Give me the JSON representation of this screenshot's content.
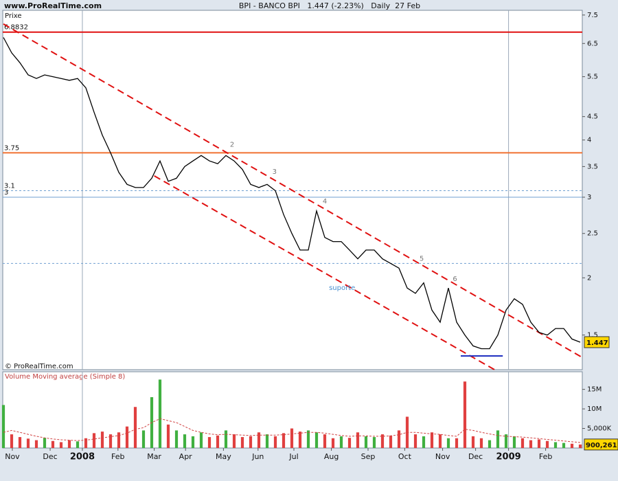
{
  "chart_data": [
    {
      "type": "line",
      "title": "BPI - BANCO BPI   1.447 (-2.23%)   Daily  27 Feb",
      "site": "www.ProRealTime.com",
      "credit": "© ProRealTime.com",
      "y_label": "Prixe",
      "log_scale": true,
      "color": "#000000",
      "xlim": [
        0,
        70
      ],
      "xticks": [
        {
          "value": 1.08,
          "label": "Nov"
        },
        {
          "value": 5.67,
          "label": "Dec"
        },
        {
          "value": 9.58,
          "label": "2008"
        },
        {
          "value": 13.9,
          "label": "Feb"
        },
        {
          "value": 18.3,
          "label": "Mar"
        },
        {
          "value": 22.1,
          "label": "Apr"
        },
        {
          "value": 26.7,
          "label": "May"
        },
        {
          "value": 30.9,
          "label": "Jun"
        },
        {
          "value": 35.25,
          "label": "Jul"
        },
        {
          "value": 39.8,
          "label": "Aug"
        },
        {
          "value": 44.25,
          "label": "Sep"
        },
        {
          "value": 48.7,
          "label": "Oct"
        },
        {
          "value": 53.3,
          "label": "Nov"
        },
        {
          "value": 57.3,
          "label": "Dec"
        },
        {
          "value": 61.3,
          "label": "2009"
        },
        {
          "value": 65.8,
          "label": "Feb"
        }
      ],
      "ylim": [
        1.26,
        7.68
      ],
      "yticks": [
        1.5,
        2,
        2.5,
        3,
        3.5,
        4,
        4.5,
        5.5,
        6.5,
        7.5
      ],
      "values": [
        6.7,
        6.2,
        5.9,
        5.55,
        5.45,
        5.55,
        5.5,
        5.45,
        5.4,
        5.45,
        5.2,
        4.6,
        4.1,
        3.75,
        3.4,
        3.2,
        3.15,
        3.15,
        3.3,
        3.6,
        3.25,
        3.3,
        3.5,
        3.6,
        3.7,
        3.6,
        3.55,
        3.7,
        3.6,
        3.45,
        3.2,
        3.15,
        3.2,
        3.1,
        2.75,
        2.5,
        2.3,
        2.3,
        2.8,
        2.45,
        2.4,
        2.4,
        2.3,
        2.2,
        2.3,
        2.3,
        2.2,
        2.15,
        2.1,
        1.9,
        1.85,
        1.95,
        1.7,
        1.6,
        1.9,
        1.6,
        1.5,
        1.42,
        1.4,
        1.4,
        1.5,
        1.7,
        1.8,
        1.75,
        1.6,
        1.52,
        1.5,
        1.55,
        1.55,
        1.47,
        1.447
      ],
      "levels": [
        {
          "value": 6.8832,
          "color": "#e01010",
          "style": "solid"
        },
        {
          "value": 3.75,
          "color": "#f07030",
          "style": "solid"
        },
        {
          "value": 3.1,
          "color": "#6f9fd0",
          "style": "dashed"
        },
        {
          "value": 3,
          "color": "#6f9fd0",
          "style": "solid"
        }
      ],
      "guides": [
        {
          "value": 2.15,
          "color": "#6f9fd0",
          "style": "dashed"
        }
      ],
      "trendlines": [
        {
          "from": [
            0,
            7.17
          ],
          "to": [
            70.25,
            1.34
          ],
          "color": "#e01010",
          "style": "dashed"
        },
        {
          "from": [
            18.3,
            3.34
          ],
          "to": [
            59.6,
            1.26
          ],
          "color": "#e01010",
          "style": "dashed"
        },
        {
          "from": [
            55.5,
            1.35
          ],
          "to": [
            60.6,
            1.35
          ],
          "color": "#2030c0",
          "style": "solid"
        }
      ],
      "annotations": [
        {
          "text": "2",
          "x": 27.75,
          "y": 3.91,
          "color": "#777777"
        },
        {
          "text": "3",
          "x": 32.9,
          "y": 3.41,
          "color": "#777777"
        },
        {
          "text": "4",
          "x": 39,
          "y": 2.94,
          "color": "#777777"
        },
        {
          "text": "5",
          "x": 50.75,
          "y": 2.2,
          "color": "#777777"
        },
        {
          "text": "6",
          "x": 54.8,
          "y": 1.99,
          "color": "#777777"
        },
        {
          "text": "suporte",
          "x": 41.1,
          "y": 1.9,
          "color": "#4a90d0"
        }
      ]
    },
    {
      "type": "bar",
      "title": "Volume Moving average (Simple 8)",
      "up_color": "#40b040",
      "down_color": "#e04040",
      "xlim": [
        0,
        70
      ],
      "ylim": [
        0,
        19500000
      ],
      "yticks": [
        {
          "value": 5000000,
          "label": "5,000K"
        },
        {
          "value": 10000000,
          "label": "10M"
        },
        {
          "value": 15000000,
          "label": "15M"
        }
      ],
      "values": [
        11000000,
        3500000,
        2800000,
        2400000,
        2000000,
        2600000,
        1800000,
        1500000,
        2000000,
        1700000,
        2500000,
        3800000,
        4200000,
        3500000,
        4000000,
        5500000,
        10500000,
        4500000,
        13000000,
        17500000,
        6000000,
        4500000,
        3500000,
        3000000,
        4000000,
        2800000,
        3200000,
        4500000,
        3500000,
        2800000,
        3000000,
        4000000,
        3500000,
        3000000,
        3800000,
        5000000,
        4200000,
        4500000,
        4000000,
        3500000,
        2500000,
        3000000,
        2600000,
        4000000,
        3000000,
        2800000,
        3500000,
        3200000,
        4500000,
        8000000,
        3500000,
        3000000,
        4000000,
        3500000,
        2500000,
        2500000,
        17000000,
        3000000,
        2500000,
        2000000,
        4500000,
        3500000,
        3000000,
        2500000,
        2000000,
        2200000,
        1800000,
        1500000,
        1300000,
        1100000,
        900261
      ],
      "last_label": "900,261",
      "ma": {
        "color": "#d04040",
        "values": [
          4000000,
          4500000,
          4000000,
          3500000,
          3000000,
          2600000,
          2300000,
          2100000,
          2000000,
          1900000,
          2000000,
          2300000,
          2600000,
          2900000,
          3200000,
          3800000,
          4800000,
          5200000,
          6500000,
          7500000,
          7000000,
          6500000,
          5500000,
          4500000,
          4000000,
          3600000,
          3400000,
          3500000,
          3400000,
          3300000,
          3200000,
          3300000,
          3300000,
          3300000,
          3400000,
          3600000,
          3800000,
          4000000,
          4000000,
          3800000,
          3500000,
          3200000,
          3000000,
          3100000,
          3100000,
          3000000,
          3000000,
          3100000,
          3400000,
          4000000,
          4000000,
          3800000,
          3600000,
          3500000,
          3200000,
          3000000,
          4800000,
          4500000,
          4000000,
          3600000,
          3200000,
          3000000,
          2900000,
          2800000,
          2600000,
          2400000,
          2200000,
          2000000,
          1800000,
          1600000,
          1400000
        ]
      }
    }
  ]
}
